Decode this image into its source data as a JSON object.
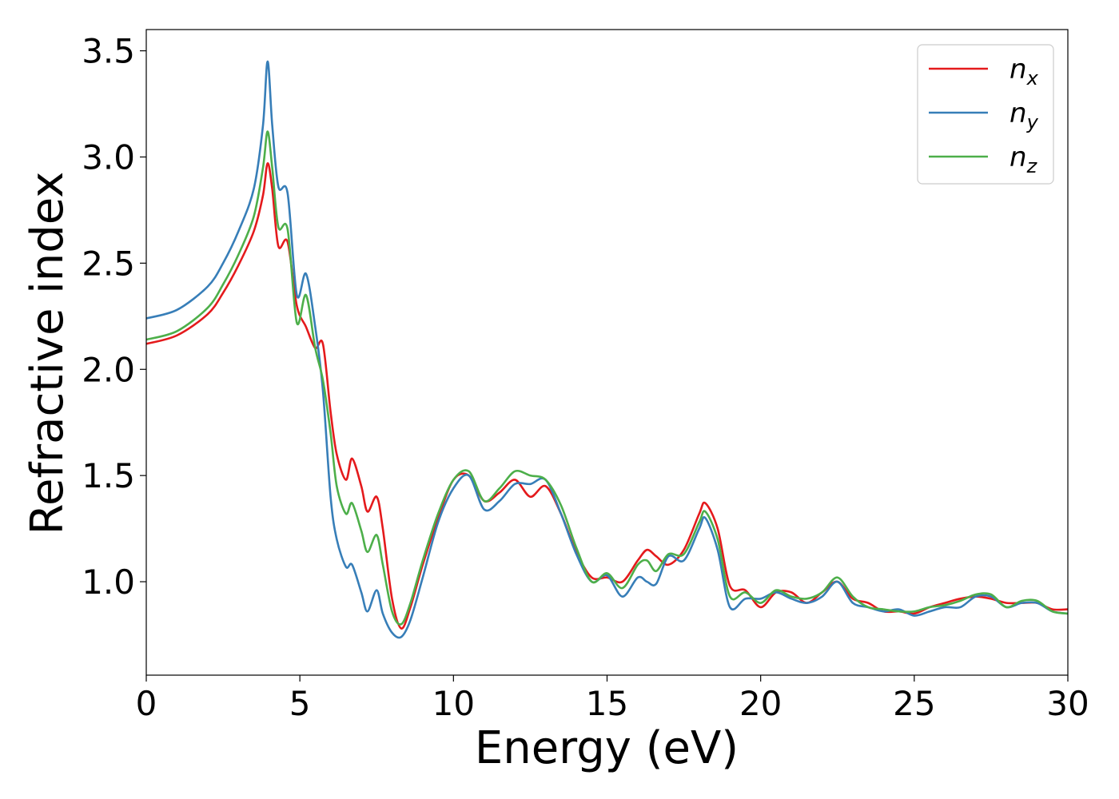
{
  "chart_data": {
    "type": "line",
    "xlabel": "Energy (eV)",
    "ylabel": "Refractive index",
    "xlim": [
      0,
      30
    ],
    "ylim": [
      0.56,
      3.6
    ],
    "xticks": [
      0,
      5,
      10,
      15,
      20,
      25,
      30
    ],
    "xtick_labels": [
      "0",
      "5",
      "10",
      "15",
      "20",
      "25",
      "30"
    ],
    "yticks": [
      1.0,
      1.5,
      2.0,
      2.5,
      3.0,
      3.5
    ],
    "ytick_labels": [
      "1.0",
      "1.5",
      "2.0",
      "2.5",
      "3.0",
      "3.5"
    ],
    "grid": false,
    "legend_position": "top-right",
    "series": [
      {
        "name": "n",
        "subscript": "x",
        "color": "#e41a1c",
        "x": [
          0,
          1,
          2,
          2.5,
          3,
          3.5,
          3.8,
          3.95,
          4.1,
          4.3,
          4.6,
          4.9,
          5.2,
          5.5,
          5.75,
          6.0,
          6.2,
          6.5,
          6.7,
          7.0,
          7.2,
          7.5,
          7.7,
          8.0,
          8.3,
          8.6,
          9.0,
          9.5,
          10,
          10.5,
          11,
          11.5,
          12,
          12.5,
          13,
          13.5,
          14,
          14.5,
          15,
          15.5,
          16,
          16.3,
          16.6,
          17,
          17.5,
          18,
          18.2,
          18.6,
          19,
          19.5,
          20,
          20.5,
          21,
          21.5,
          22,
          22.5,
          23,
          23.5,
          24,
          24.5,
          25,
          25.5,
          26,
          26.5,
          27,
          27.5,
          28,
          28.5,
          29,
          29.5,
          30
        ],
        "y": [
          2.12,
          2.16,
          2.26,
          2.36,
          2.49,
          2.65,
          2.82,
          2.97,
          2.85,
          2.58,
          2.6,
          2.3,
          2.2,
          2.1,
          2.12,
          1.8,
          1.6,
          1.48,
          1.58,
          1.45,
          1.33,
          1.4,
          1.25,
          0.92,
          0.78,
          0.88,
          1.08,
          1.3,
          1.48,
          1.5,
          1.38,
          1.42,
          1.48,
          1.4,
          1.45,
          1.32,
          1.14,
          1.02,
          1.02,
          1.0,
          1.1,
          1.15,
          1.12,
          1.08,
          1.15,
          1.32,
          1.37,
          1.25,
          0.98,
          0.96,
          0.88,
          0.95,
          0.95,
          0.9,
          0.95,
          1.0,
          0.92,
          0.9,
          0.86,
          0.86,
          0.85,
          0.88,
          0.9,
          0.92,
          0.93,
          0.92,
          0.9,
          0.9,
          0.9,
          0.87,
          0.87
        ]
      },
      {
        "name": "n",
        "subscript": "y",
        "color": "#377eb8",
        "x": [
          0,
          1,
          2,
          2.5,
          3,
          3.5,
          3.8,
          3.95,
          4.1,
          4.3,
          4.6,
          4.9,
          5.2,
          5.5,
          5.75,
          6.0,
          6.2,
          6.5,
          6.7,
          7.0,
          7.2,
          7.5,
          7.7,
          8.0,
          8.3,
          8.6,
          9.0,
          9.5,
          10,
          10.5,
          11,
          11.5,
          12,
          12.5,
          13,
          13.5,
          14,
          14.5,
          15,
          15.5,
          16,
          16.3,
          16.6,
          17,
          17.5,
          18,
          18.2,
          18.6,
          19,
          19.5,
          20,
          20.5,
          21,
          21.5,
          22,
          22.5,
          23,
          23.5,
          24,
          24.5,
          25,
          25.5,
          26,
          26.5,
          27,
          27.5,
          28,
          28.5,
          29,
          29.5,
          30
        ],
        "y": [
          2.24,
          2.28,
          2.39,
          2.5,
          2.65,
          2.85,
          3.15,
          3.45,
          3.15,
          2.86,
          2.83,
          2.35,
          2.45,
          2.2,
          1.9,
          1.4,
          1.2,
          1.07,
          1.08,
          0.95,
          0.86,
          0.96,
          0.85,
          0.76,
          0.74,
          0.82,
          1.02,
          1.28,
          1.44,
          1.5,
          1.34,
          1.38,
          1.46,
          1.46,
          1.48,
          1.32,
          1.13,
          1.0,
          1.03,
          0.93,
          1.02,
          1.0,
          0.99,
          1.12,
          1.1,
          1.25,
          1.3,
          1.15,
          0.88,
          0.92,
          0.92,
          0.95,
          0.92,
          0.9,
          0.93,
          1.0,
          0.9,
          0.88,
          0.86,
          0.87,
          0.84,
          0.86,
          0.88,
          0.88,
          0.93,
          0.93,
          0.88,
          0.9,
          0.9,
          0.86,
          0.85
        ]
      },
      {
        "name": "n",
        "subscript": "z",
        "color": "#4daf4a",
        "x": [
          0,
          1,
          2,
          2.5,
          3,
          3.5,
          3.8,
          3.95,
          4.1,
          4.3,
          4.6,
          4.9,
          5.2,
          5.5,
          5.75,
          6.0,
          6.2,
          6.5,
          6.7,
          7.0,
          7.2,
          7.5,
          7.7,
          8.0,
          8.3,
          8.6,
          9.0,
          9.5,
          10,
          10.5,
          11,
          11.5,
          12,
          12.5,
          13,
          13.5,
          14,
          14.5,
          15,
          15.5,
          16,
          16.3,
          16.6,
          17,
          17.5,
          18,
          18.2,
          18.6,
          19,
          19.5,
          20,
          20.5,
          21,
          21.5,
          22,
          22.5,
          23,
          23.5,
          24,
          24.5,
          25,
          25.5,
          26,
          26.5,
          27,
          27.5,
          28,
          28.5,
          29,
          29.5,
          30
        ],
        "y": [
          2.14,
          2.18,
          2.29,
          2.4,
          2.54,
          2.72,
          2.95,
          3.12,
          2.95,
          2.67,
          2.66,
          2.22,
          2.35,
          2.1,
          1.95,
          1.7,
          1.45,
          1.32,
          1.37,
          1.24,
          1.14,
          1.22,
          1.08,
          0.86,
          0.8,
          0.9,
          1.1,
          1.32,
          1.48,
          1.52,
          1.38,
          1.44,
          1.52,
          1.5,
          1.48,
          1.36,
          1.16,
          1.0,
          1.04,
          0.97,
          1.08,
          1.1,
          1.05,
          1.13,
          1.13,
          1.28,
          1.33,
          1.2,
          0.93,
          0.95,
          0.9,
          0.96,
          0.93,
          0.92,
          0.95,
          1.02,
          0.93,
          0.88,
          0.87,
          0.86,
          0.86,
          0.88,
          0.89,
          0.91,
          0.94,
          0.94,
          0.88,
          0.91,
          0.91,
          0.86,
          0.85
        ]
      }
    ]
  }
}
